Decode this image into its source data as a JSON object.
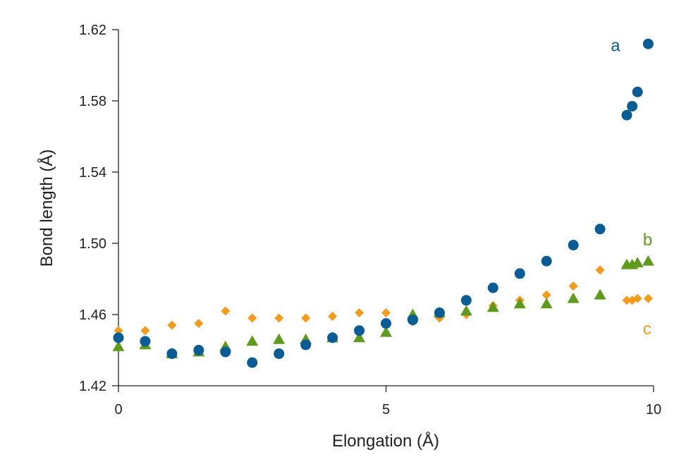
{
  "chart_data": {
    "type": "scatter",
    "title": "",
    "xlabel": "Elongation (Å)",
    "ylabel": "Bond length (Å)",
    "xlim": [
      0,
      10
    ],
    "ylim": [
      1.42,
      1.62
    ],
    "x_ticks": [
      0,
      5,
      10
    ],
    "x_tick_labels": [
      "0",
      "5",
      "10"
    ],
    "y_ticks": [
      1.42,
      1.46,
      1.5,
      1.54,
      1.58,
      1.62
    ],
    "y_tick_labels": [
      "1.42",
      "1.46",
      "1.50",
      "1.54",
      "1.58",
      "1.62"
    ],
    "grid": false,
    "legend": "none",
    "series": [
      {
        "name": "a",
        "marker": "circle",
        "color": "#0a5d94",
        "label_pos": [
          9.2,
          1.611
        ],
        "points": [
          [
            0,
            1.447
          ],
          [
            0.5,
            1.445
          ],
          [
            1.0,
            1.438
          ],
          [
            1.5,
            1.44
          ],
          [
            2.0,
            1.439
          ],
          [
            2.5,
            1.433
          ],
          [
            3.0,
            1.438
          ],
          [
            3.5,
            1.443
          ],
          [
            4.0,
            1.447
          ],
          [
            4.5,
            1.451
          ],
          [
            5.0,
            1.455
          ],
          [
            5.5,
            1.457
          ],
          [
            6.0,
            1.461
          ],
          [
            6.5,
            1.468
          ],
          [
            7.0,
            1.475
          ],
          [
            7.5,
            1.483
          ],
          [
            8.0,
            1.49
          ],
          [
            8.5,
            1.499
          ],
          [
            9.0,
            1.508
          ],
          [
            9.5,
            1.572
          ],
          [
            9.6,
            1.577
          ],
          [
            9.7,
            1.585
          ],
          [
            9.9,
            1.612
          ]
        ]
      },
      {
        "name": "b",
        "marker": "triangle",
        "color": "#5e9b1c",
        "label_pos": [
          9.8,
          1.502
        ],
        "points": [
          [
            0,
            1.442
          ],
          [
            0.5,
            1.443
          ],
          [
            1.0,
            1.438
          ],
          [
            1.5,
            1.439
          ],
          [
            2.0,
            1.442
          ],
          [
            2.5,
            1.445
          ],
          [
            3.0,
            1.446
          ],
          [
            3.5,
            1.446
          ],
          [
            4.0,
            1.447
          ],
          [
            4.5,
            1.447
          ],
          [
            5.0,
            1.45
          ],
          [
            5.5,
            1.46
          ],
          [
            6.0,
            1.461
          ],
          [
            6.5,
            1.462
          ],
          [
            7.0,
            1.464
          ],
          [
            7.5,
            1.466
          ],
          [
            8.0,
            1.466
          ],
          [
            8.5,
            1.469
          ],
          [
            9.0,
            1.471
          ],
          [
            9.5,
            1.488
          ],
          [
            9.6,
            1.488
          ],
          [
            9.7,
            1.489
          ],
          [
            9.9,
            1.49
          ]
        ]
      },
      {
        "name": "c",
        "marker": "diamond",
        "color": "#f29b1d",
        "label_pos": [
          9.8,
          1.452
        ],
        "points": [
          [
            0,
            1.451
          ],
          [
            0.5,
            1.451
          ],
          [
            1.0,
            1.454
          ],
          [
            1.5,
            1.455
          ],
          [
            2.0,
            1.462
          ],
          [
            2.5,
            1.458
          ],
          [
            3.0,
            1.458
          ],
          [
            3.5,
            1.458
          ],
          [
            4.0,
            1.459
          ],
          [
            4.5,
            1.461
          ],
          [
            5.0,
            1.461
          ],
          [
            5.5,
            1.456
          ],
          [
            6.0,
            1.458
          ],
          [
            6.5,
            1.46
          ],
          [
            7.0,
            1.465
          ],
          [
            7.5,
            1.468
          ],
          [
            8.0,
            1.471
          ],
          [
            8.5,
            1.476
          ],
          [
            9.0,
            1.485
          ],
          [
            9.5,
            1.468
          ],
          [
            9.6,
            1.468
          ],
          [
            9.7,
            1.469
          ],
          [
            9.9,
            1.469
          ]
        ]
      }
    ],
    "axis_color": "#222222"
  }
}
